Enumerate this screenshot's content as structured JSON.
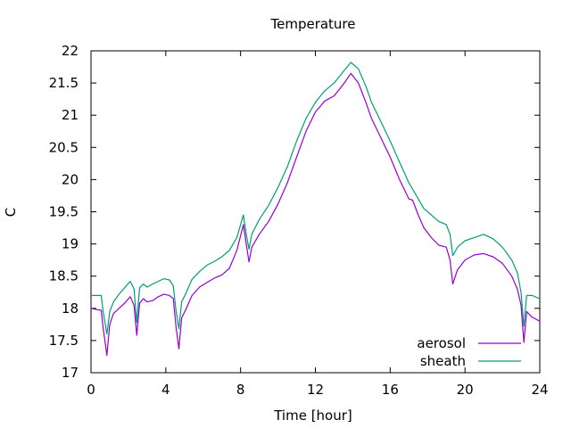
{
  "chart_data": {
    "type": "line",
    "title": "Temperature",
    "xlabel": "Time [hour]",
    "ylabel": "C",
    "xlim": [
      0,
      24
    ],
    "ylim": [
      17,
      22
    ],
    "x_ticks": [
      0,
      4,
      8,
      12,
      16,
      20,
      24
    ],
    "y_ticks": [
      17,
      17.5,
      18,
      18.5,
      19,
      19.5,
      20,
      20.5,
      21,
      21.5,
      22
    ],
    "grid": false,
    "legend_position": "bottom-right",
    "series": [
      {
        "name": "aerosol",
        "color": "#9400d3",
        "points": [
          [
            0,
            18.0
          ],
          [
            0.3,
            17.98
          ],
          [
            0.55,
            17.97
          ],
          [
            0.65,
            17.7
          ],
          [
            0.85,
            17.27
          ],
          [
            1.0,
            17.75
          ],
          [
            1.2,
            17.92
          ],
          [
            1.5,
            18.0
          ],
          [
            1.8,
            18.08
          ],
          [
            2.1,
            18.18
          ],
          [
            2.3,
            18.05
          ],
          [
            2.45,
            17.58
          ],
          [
            2.6,
            18.08
          ],
          [
            2.8,
            18.15
          ],
          [
            3.0,
            18.1
          ],
          [
            3.3,
            18.12
          ],
          [
            3.6,
            18.18
          ],
          [
            3.9,
            18.22
          ],
          [
            4.2,
            18.2
          ],
          [
            4.4,
            18.15
          ],
          [
            4.55,
            17.7
          ],
          [
            4.7,
            17.37
          ],
          [
            4.85,
            17.85
          ],
          [
            5.1,
            18.0
          ],
          [
            5.4,
            18.2
          ],
          [
            5.8,
            18.33
          ],
          [
            6.2,
            18.4
          ],
          [
            6.6,
            18.47
          ],
          [
            7.0,
            18.52
          ],
          [
            7.4,
            18.62
          ],
          [
            7.8,
            18.9
          ],
          [
            8.15,
            19.3
          ],
          [
            8.3,
            19.0
          ],
          [
            8.45,
            18.72
          ],
          [
            8.6,
            18.95
          ],
          [
            9.0,
            19.15
          ],
          [
            9.5,
            19.35
          ],
          [
            10.0,
            19.62
          ],
          [
            10.5,
            19.95
          ],
          [
            11.0,
            20.35
          ],
          [
            11.5,
            20.75
          ],
          [
            12.0,
            21.05
          ],
          [
            12.5,
            21.22
          ],
          [
            13.0,
            21.3
          ],
          [
            13.5,
            21.48
          ],
          [
            13.9,
            21.65
          ],
          [
            14.3,
            21.5
          ],
          [
            14.7,
            21.2
          ],
          [
            15.0,
            20.95
          ],
          [
            15.5,
            20.65
          ],
          [
            16.0,
            20.35
          ],
          [
            16.5,
            20.0
          ],
          [
            17.0,
            19.7
          ],
          [
            17.2,
            19.68
          ],
          [
            17.5,
            19.45
          ],
          [
            17.8,
            19.25
          ],
          [
            18.2,
            19.1
          ],
          [
            18.6,
            18.98
          ],
          [
            19.0,
            18.95
          ],
          [
            19.2,
            18.75
          ],
          [
            19.35,
            18.38
          ],
          [
            19.6,
            18.6
          ],
          [
            20.0,
            18.75
          ],
          [
            20.5,
            18.83
          ],
          [
            21.0,
            18.85
          ],
          [
            21.5,
            18.8
          ],
          [
            22.0,
            18.7
          ],
          [
            22.5,
            18.5
          ],
          [
            22.8,
            18.3
          ],
          [
            23.0,
            18.05
          ],
          [
            23.15,
            17.47
          ],
          [
            23.3,
            17.95
          ],
          [
            23.6,
            17.86
          ],
          [
            24.0,
            17.8
          ]
        ]
      },
      {
        "name": "sheath",
        "color": "#009e73",
        "points": [
          [
            0,
            18.2
          ],
          [
            0.3,
            18.2
          ],
          [
            0.55,
            18.2
          ],
          [
            0.65,
            17.95
          ],
          [
            0.85,
            17.6
          ],
          [
            1.0,
            17.95
          ],
          [
            1.2,
            18.1
          ],
          [
            1.5,
            18.22
          ],
          [
            1.8,
            18.32
          ],
          [
            2.1,
            18.42
          ],
          [
            2.3,
            18.3
          ],
          [
            2.45,
            17.78
          ],
          [
            2.6,
            18.32
          ],
          [
            2.8,
            18.38
          ],
          [
            3.0,
            18.33
          ],
          [
            3.3,
            18.38
          ],
          [
            3.6,
            18.42
          ],
          [
            3.9,
            18.46
          ],
          [
            4.2,
            18.44
          ],
          [
            4.4,
            18.35
          ],
          [
            4.55,
            17.95
          ],
          [
            4.7,
            17.68
          ],
          [
            4.85,
            18.1
          ],
          [
            5.1,
            18.25
          ],
          [
            5.4,
            18.45
          ],
          [
            5.8,
            18.57
          ],
          [
            6.2,
            18.67
          ],
          [
            6.6,
            18.73
          ],
          [
            7.0,
            18.8
          ],
          [
            7.4,
            18.9
          ],
          [
            7.8,
            19.1
          ],
          [
            8.15,
            19.45
          ],
          [
            8.3,
            19.15
          ],
          [
            8.45,
            18.92
          ],
          [
            8.6,
            19.15
          ],
          [
            9.0,
            19.38
          ],
          [
            9.5,
            19.6
          ],
          [
            10.0,
            19.88
          ],
          [
            10.5,
            20.2
          ],
          [
            11.0,
            20.6
          ],
          [
            11.5,
            20.95
          ],
          [
            12.0,
            21.2
          ],
          [
            12.5,
            21.38
          ],
          [
            13.0,
            21.5
          ],
          [
            13.5,
            21.68
          ],
          [
            13.9,
            21.82
          ],
          [
            14.3,
            21.72
          ],
          [
            14.7,
            21.45
          ],
          [
            15.0,
            21.2
          ],
          [
            15.5,
            20.9
          ],
          [
            16.0,
            20.6
          ],
          [
            16.5,
            20.27
          ],
          [
            17.0,
            19.95
          ],
          [
            17.5,
            19.7
          ],
          [
            17.8,
            19.55
          ],
          [
            18.2,
            19.45
          ],
          [
            18.6,
            19.35
          ],
          [
            19.0,
            19.3
          ],
          [
            19.2,
            19.15
          ],
          [
            19.35,
            18.82
          ],
          [
            19.6,
            18.95
          ],
          [
            20.0,
            19.05
          ],
          [
            20.5,
            19.1
          ],
          [
            21.0,
            19.15
          ],
          [
            21.5,
            19.08
          ],
          [
            22.0,
            18.95
          ],
          [
            22.5,
            18.75
          ],
          [
            22.8,
            18.55
          ],
          [
            23.0,
            18.25
          ],
          [
            23.15,
            17.72
          ],
          [
            23.3,
            18.2
          ],
          [
            23.6,
            18.2
          ],
          [
            24.0,
            18.15
          ]
        ]
      }
    ]
  }
}
